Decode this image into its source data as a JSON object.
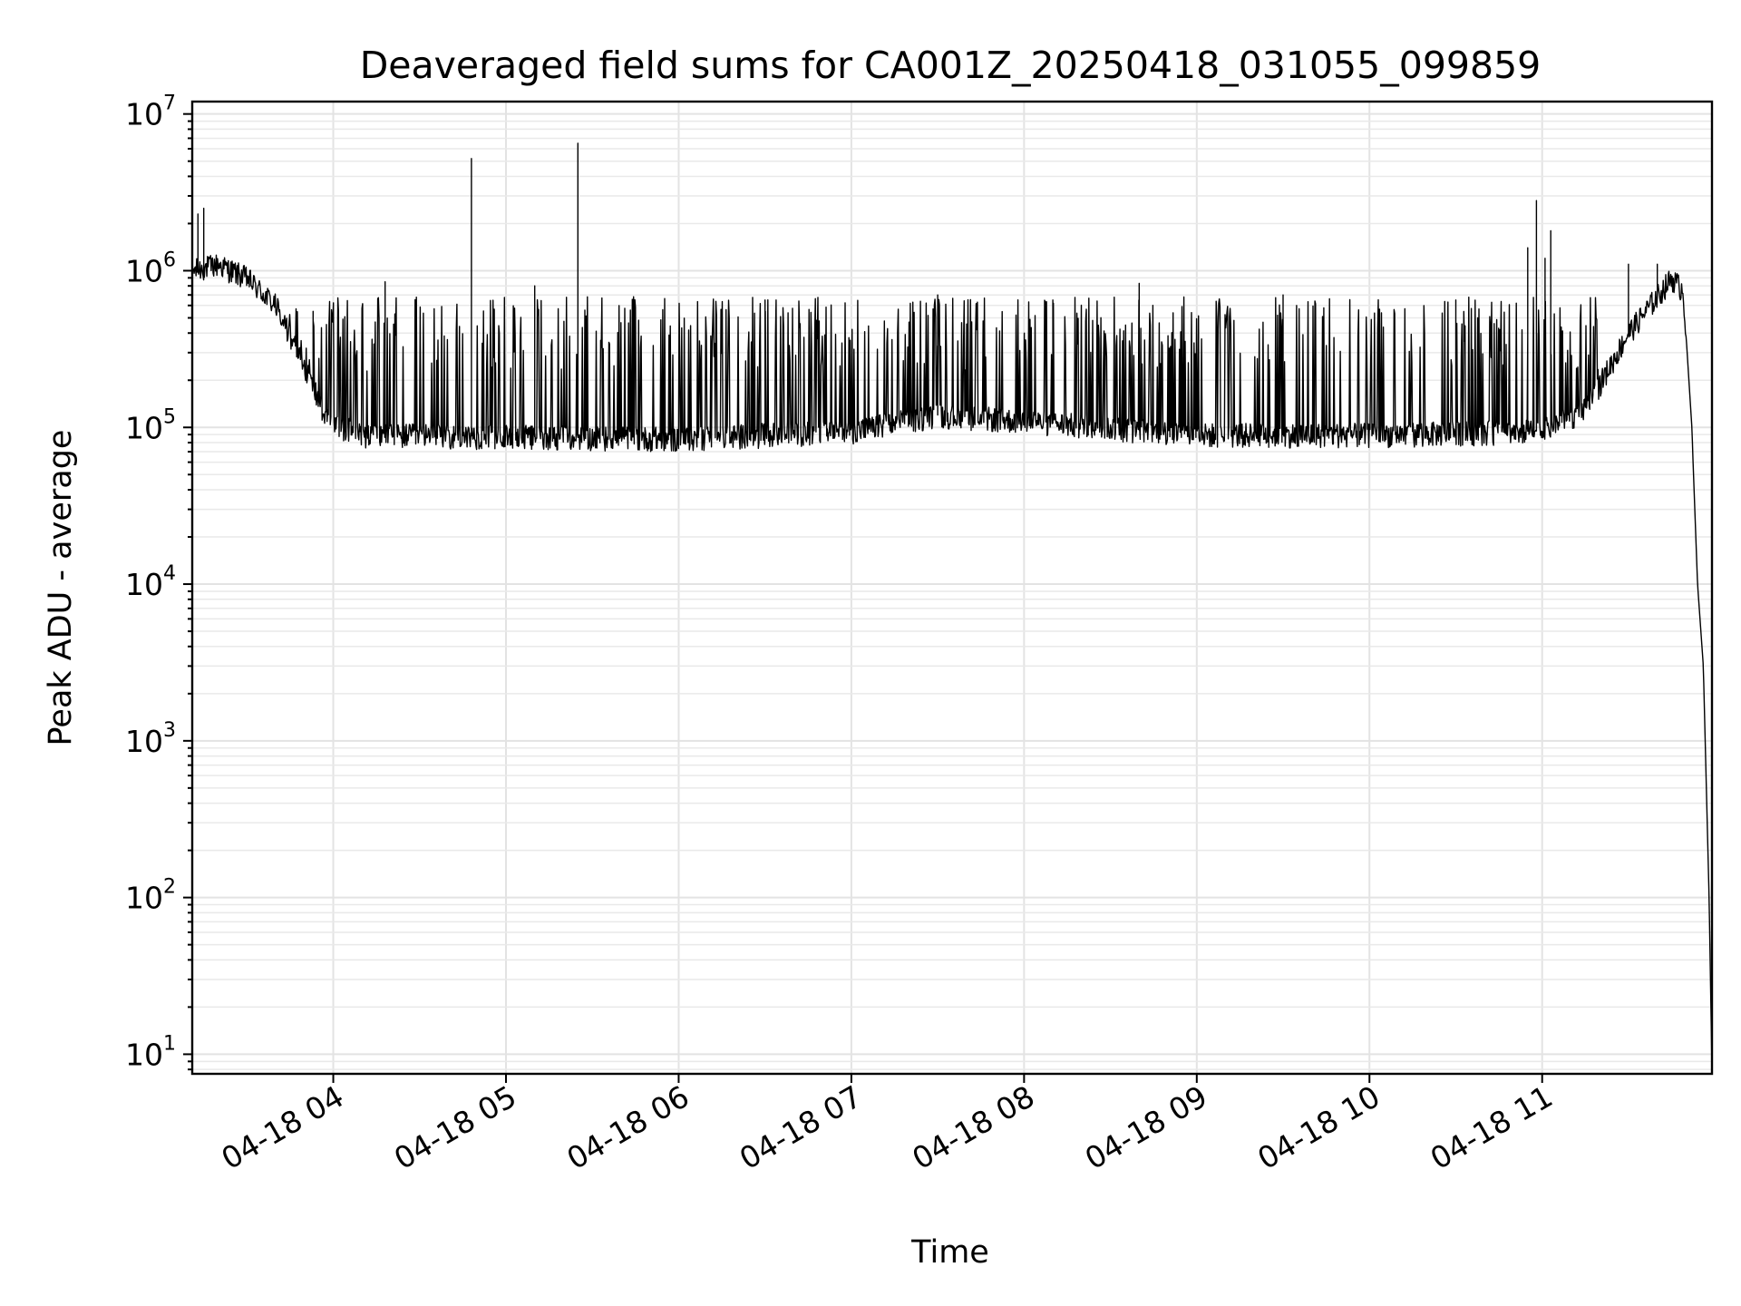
{
  "chart_data": {
    "type": "line",
    "title": "Deaveraged field sums for CA001Z_20250418_031055_099859",
    "xlabel": "Time",
    "ylabel": "Peak ADU - average",
    "yscale": "log",
    "ylim": [
      7.5,
      12000000
    ],
    "xlim": [
      "04-18 03:11",
      "04-18 11:59"
    ],
    "grid": true,
    "color": "#000000",
    "x_ticks": [
      "04-18 04",
      "04-18 05",
      "04-18 06",
      "04-18 07",
      "04-18 08",
      "04-18 09",
      "04-18 10",
      "04-18 11"
    ],
    "y_ticks": [
      {
        "base": "10",
        "exp": "1",
        "value": 10
      },
      {
        "base": "10",
        "exp": "2",
        "value": 100
      },
      {
        "base": "10",
        "exp": "3",
        "value": 1000
      },
      {
        "base": "10",
        "exp": "4",
        "value": 10000
      },
      {
        "base": "10",
        "exp": "5",
        "value": 100000
      },
      {
        "base": "10",
        "exp": "6",
        "value": 1000000
      },
      {
        "base": "10",
        "exp": "7",
        "value": 10000000
      }
    ],
    "series": [
      {
        "baseline": [
          [
            "04-18 03:11",
            1000000
          ],
          [
            "04-18 03:20",
            1100000
          ],
          [
            "04-18 03:30",
            900000
          ],
          [
            "04-18 03:40",
            600000
          ],
          [
            "04-18 03:50",
            250000
          ],
          [
            "04-18 03:58",
            110000
          ],
          [
            "04-18 04:10",
            90000
          ],
          [
            "04-18 06:00",
            85000
          ],
          [
            "04-18 07:00",
            95000
          ],
          [
            "04-18 07:30",
            120000
          ],
          [
            "04-18 08:00",
            110000
          ],
          [
            "04-18 09:00",
            90000
          ],
          [
            "04-18 10:00",
            90000
          ],
          [
            "04-18 11:00",
            95000
          ],
          [
            "04-18 11:15",
            130000
          ],
          [
            "04-18 11:30",
            400000
          ],
          [
            "04-18 11:45",
            900000
          ],
          [
            "04-18 11:49",
            750000
          ],
          [
            "04-18 11:52",
            100000
          ],
          [
            "04-18 11:54",
            10000
          ],
          [
            "04-18 11:56",
            3000
          ],
          [
            "04-18 11:58",
            100
          ],
          [
            "04-18 11:59",
            8
          ]
        ],
        "spikes": [
          [
            "04-18 03:13",
            2300000
          ],
          [
            "04-18 03:15",
            2500000
          ],
          [
            "04-18 03:53",
            550000
          ],
          [
            "04-18 04:18",
            850000
          ],
          [
            "04-18 04:48",
            5200000
          ],
          [
            "04-18 05:10",
            800000
          ],
          [
            "04-18 05:25",
            800000
          ],
          [
            "04-18 05:25",
            6500000
          ],
          [
            "04-18 06:30",
            650000
          ],
          [
            "04-18 07:30",
            700000
          ],
          [
            "04-18 08:10",
            650000
          ],
          [
            "04-18 08:40",
            830000
          ],
          [
            "04-18 09:30",
            700000
          ],
          [
            "04-18 10:30",
            650000
          ],
          [
            "04-18 10:55",
            1400000
          ],
          [
            "04-18 10:58",
            2800000
          ],
          [
            "04-18 11:01",
            1200000
          ],
          [
            "04-18 11:03",
            1800000
          ],
          [
            "04-18 11:30",
            1100000
          ],
          [
            "04-18 11:40",
            1100000
          ]
        ],
        "fluctuation_peak": 650000
      }
    ]
  }
}
